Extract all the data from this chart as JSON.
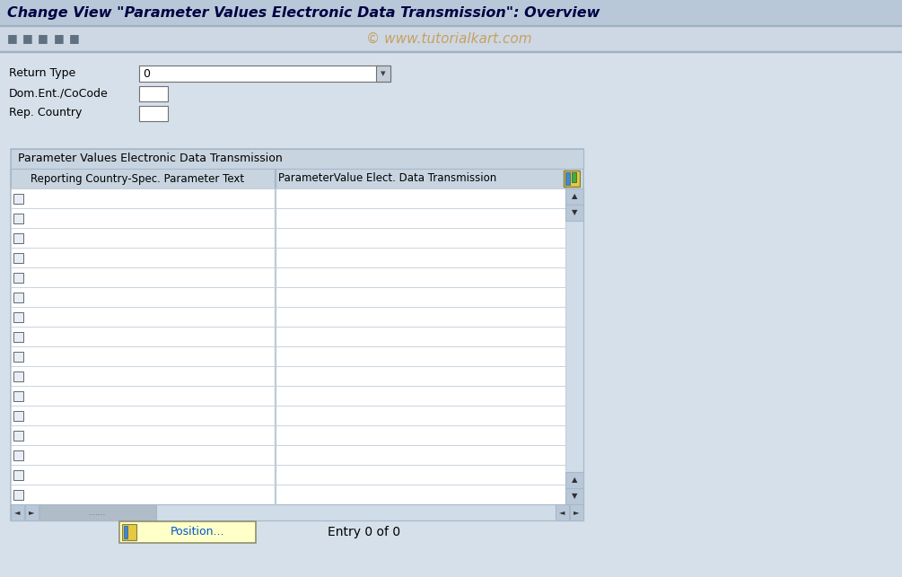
{
  "title": "Change View \"Parameter Values Electronic Data Transmission\": Overview",
  "watermark": "© www.tutorialkart.com",
  "bg_color": "#d6e0ea",
  "header_bg": "#b8c8d8",
  "toolbar_bg": "#cdd8e4",
  "field_label1": "Return Type",
  "field_label2": "Dom.Ent./CoCode",
  "field_label3": "Rep. Country",
  "dropdown_value": "0",
  "table_title": "Parameter Values Electronic Data Transmission",
  "col1_header": "Reporting Country-Spec. Parameter Text",
  "col2_header": "ParameterValue Elect. Data Transmission",
  "table_header_bg": "#c8d4e0",
  "table_border": "#a8b8c8",
  "num_rows": 16,
  "bottom_text": "Entry 0 of 0",
  "position_btn": "Position...",
  "white": "#ffffff",
  "dark_text": "#000000",
  "blue_text": "#0055cc",
  "title_color": "#000044",
  "scrollbar_bg": "#d0dce8",
  "scrollbar_btn": "#b8c8d8",
  "input_border": "#888888",
  "watermark_color": "#c8a060",
  "row_border": "#c0ccd8"
}
